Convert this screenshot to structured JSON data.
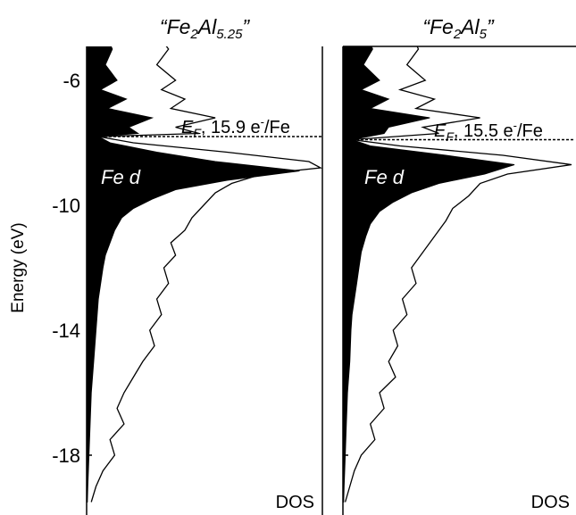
{
  "chart_data": {
    "type": "area",
    "orientation": "horizontal",
    "ylabel": "Energy (eV)",
    "ylim": [
      -19.5,
      -4.5
    ],
    "yticks": [
      -6,
      -10,
      -14,
      -18
    ],
    "ytick_labels": [
      "-6",
      "-10",
      "-14",
      "-18"
    ],
    "panels": [
      {
        "title_quote_open": "“",
        "title_base": "Fe",
        "title_sub1": "2",
        "title_mid": "Al",
        "title_sub2": "5.25",
        "title_quote_close": "”",
        "xlabel": "DOS",
        "fermi_energy": -7.8,
        "fermi_label_E": "E",
        "fermi_label_F": "F",
        "fermi_label_text": ", 15.9 e",
        "fermi_label_sup": "-",
        "fermi_label_tail": "/Fe",
        "fill_label": "Fe d",
        "series": [
          {
            "name": "Fe d",
            "fill": "#000000",
            "energy": [
              -4.5,
              -5.0,
              -5.5,
              -6.0,
              -6.3,
              -6.6,
              -6.9,
              -7.2,
              -7.5,
              -7.7,
              -7.8,
              -8.0,
              -8.3,
              -8.6,
              -8.9,
              -9.2,
              -9.5,
              -9.8,
              -10.1,
              -10.4,
              -10.8,
              -11.2,
              -11.6,
              -12.0,
              -12.5,
              -13.0,
              -13.5,
              -14.0,
              -14.5,
              -15.0,
              -16.0,
              -17.0,
              -18.0,
              -19.0,
              -19.5
            ],
            "dos": [
              0.08,
              0.11,
              0.08,
              0.13,
              0.06,
              0.17,
              0.09,
              0.28,
              0.18,
              0.22,
              0.05,
              0.1,
              0.3,
              0.55,
              0.91,
              0.6,
              0.38,
              0.28,
              0.2,
              0.15,
              0.12,
              0.1,
              0.08,
              0.07,
              0.06,
              0.05,
              0.045,
              0.04,
              0.035,
              0.03,
              0.02,
              0.015,
              0.01,
              0.005,
              0.003
            ]
          },
          {
            "name": "total",
            "fill": "none",
            "energy": [
              -4.5,
              -5.0,
              -5.5,
              -6.0,
              -6.3,
              -6.6,
              -6.9,
              -7.2,
              -7.5,
              -7.7,
              -7.8,
              -8.0,
              -8.3,
              -8.6,
              -8.8,
              -9.0,
              -9.3,
              -9.6,
              -10.0,
              -10.4,
              -10.8,
              -11.2,
              -11.6,
              -12.0,
              -12.5,
              -13.0,
              -13.5,
              -14.0,
              -14.5,
              -15.0,
              -15.5,
              -16.0,
              -16.5,
              -17.0,
              -17.5,
              -18.0,
              -18.5,
              -19.0,
              -19.5
            ],
            "dos": [
              0.3,
              0.35,
              0.3,
              0.38,
              0.32,
              0.42,
              0.36,
              0.55,
              0.38,
              0.48,
              0.05,
              0.2,
              0.6,
              0.95,
              1.0,
              0.75,
              0.62,
              0.55,
              0.5,
              0.45,
              0.42,
              0.36,
              0.38,
              0.33,
              0.35,
              0.3,
              0.32,
              0.27,
              0.29,
              0.24,
              0.2,
              0.16,
              0.13,
              0.16,
              0.1,
              0.12,
              0.07,
              0.04,
              0.02
            ]
          }
        ]
      },
      {
        "title_quote_open": "“",
        "title_base": "Fe",
        "title_sub1": "2",
        "title_mid": "Al",
        "title_sub2": "5",
        "title_quote_close": "”",
        "xlabel": "DOS",
        "fermi_energy": -7.9,
        "fermi_label_E": "E",
        "fermi_label_F": "F",
        "fermi_label_text": ", 15.5 e",
        "fermi_label_sup": "-",
        "fermi_label_tail": "/Fe",
        "fill_label": "Fe d",
        "series": [
          {
            "name": "Fe d",
            "fill": "#000000",
            "energy": [
              -4.5,
              -5.0,
              -5.5,
              -6.0,
              -6.3,
              -6.6,
              -6.9,
              -7.2,
              -7.5,
              -7.7,
              -7.9,
              -8.1,
              -8.4,
              -8.7,
              -9.0,
              -9.3,
              -9.6,
              -9.9,
              -10.2,
              -10.6,
              -11.0,
              -11.5,
              -12.0,
              -12.5,
              -13.0,
              -13.5,
              -14.0,
              -15.0,
              -16.0,
              -17.0,
              -18.0,
              -19.0,
              -19.5
            ],
            "dos": [
              0.1,
              0.13,
              0.09,
              0.16,
              0.08,
              0.2,
              0.12,
              0.38,
              0.2,
              0.18,
              0.04,
              0.12,
              0.45,
              0.75,
              0.62,
              0.42,
              0.3,
              0.22,
              0.16,
              0.12,
              0.1,
              0.08,
              0.07,
              0.06,
              0.05,
              0.04,
              0.035,
              0.03,
              0.02,
              0.015,
              0.01,
              0.005,
              0.003
            ]
          },
          {
            "name": "total",
            "fill": "none",
            "energy": [
              -4.5,
              -5.0,
              -5.5,
              -6.0,
              -6.3,
              -6.6,
              -6.9,
              -7.2,
              -7.5,
              -7.7,
              -7.9,
              -8.1,
              -8.4,
              -8.7,
              -9.0,
              -9.3,
              -9.7,
              -10.1,
              -10.5,
              -11.0,
              -11.5,
              -12.0,
              -12.5,
              -13.0,
              -13.5,
              -14.0,
              -14.5,
              -15.0,
              -15.5,
              -16.0,
              -16.5,
              -17.0,
              -17.5,
              -18.0,
              -18.5,
              -19.0,
              -19.5
            ],
            "dos": [
              0.3,
              0.33,
              0.28,
              0.36,
              0.25,
              0.4,
              0.32,
              0.6,
              0.35,
              0.42,
              0.04,
              0.25,
              0.7,
              1.0,
              0.72,
              0.6,
              0.55,
              0.48,
              0.45,
              0.4,
              0.35,
              0.3,
              0.32,
              0.26,
              0.28,
              0.22,
              0.24,
              0.2,
              0.23,
              0.16,
              0.18,
              0.12,
              0.14,
              0.08,
              0.05,
              0.03,
              0.01
            ]
          }
        ]
      }
    ]
  }
}
